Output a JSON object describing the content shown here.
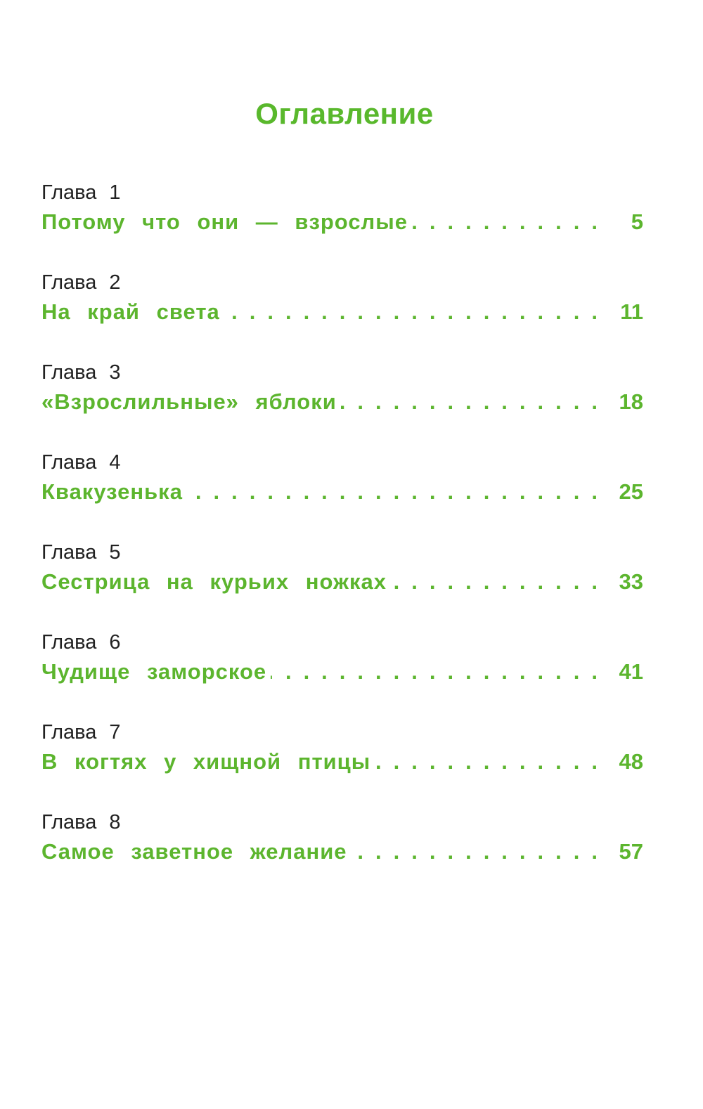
{
  "title": "Оглавление",
  "entries": [
    {
      "chapter": "Глава 1",
      "title": "Потому что они — взрослые",
      "page": "5"
    },
    {
      "chapter": "Глава 2",
      "title": "На край света",
      "page": "11"
    },
    {
      "chapter": "Глава 3",
      "title": "«Взрослильные» яблоки",
      "page": "18"
    },
    {
      "chapter": "Глава 4",
      "title": "Квакузенька",
      "page": "25"
    },
    {
      "chapter": "Глава 5",
      "title": "Сестрица на курьих ножках",
      "page": "33"
    },
    {
      "chapter": "Глава 6",
      "title": "Чудище заморское",
      "page": "41"
    },
    {
      "chapter": "Глава 7",
      "title": "В когтях у хищной птицы",
      "page": "48"
    },
    {
      "chapter": "Глава 8",
      "title": "Самое заветное желание",
      "page": "57"
    }
  ],
  "colors": {
    "accent_green": "#5cb52e",
    "text_dark": "#222222",
    "background": "#ffffff"
  }
}
